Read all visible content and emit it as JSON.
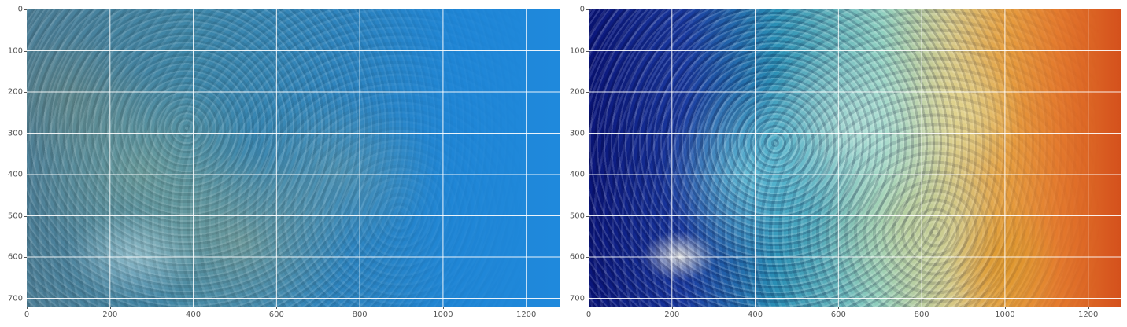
{
  "panels": [
    {
      "id": "left",
      "image": "underwater coral reef photo, original (blue haze)",
      "xticks": [
        "0",
        "200",
        "400",
        "600",
        "800",
        "1000",
        "1200"
      ],
      "yticks": [
        "0",
        "100",
        "200",
        "300",
        "400",
        "500",
        "600",
        "700"
      ]
    },
    {
      "id": "right",
      "image": "underwater coral reef photo, color-enhanced (blue to orange)",
      "xticks": [
        "0",
        "200",
        "400",
        "600",
        "800",
        "1000",
        "1200"
      ],
      "yticks": [
        "0",
        "100",
        "200",
        "300",
        "400",
        "500",
        "600",
        "700"
      ]
    }
  ],
  "colors": {
    "grid": "#ffffff",
    "tick_text": "#555555"
  }
}
